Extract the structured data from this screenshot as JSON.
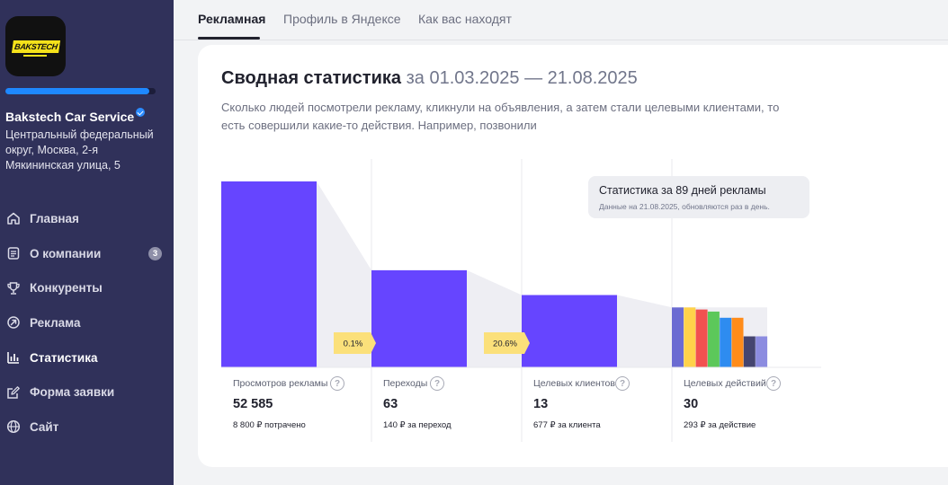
{
  "sidebar": {
    "logo_text": "BAKSTECH",
    "progress": 0.96,
    "company_name": "Bakstech Car Service",
    "address": "Центральный федеральный округ, Москва, 2-я Мякининская улица, 5",
    "nav": [
      {
        "label": "Главная",
        "icon": "home-icon"
      },
      {
        "label": "О компании",
        "icon": "document-icon",
        "badge": "3"
      },
      {
        "label": "Конкуренты",
        "icon": "trophy-icon"
      },
      {
        "label": "Реклама",
        "icon": "arrow-circle-icon"
      },
      {
        "label": "Статистика",
        "icon": "bar-chart-icon",
        "active": true
      },
      {
        "label": "Форма заявки",
        "icon": "edit-icon"
      },
      {
        "label": "Сайт",
        "icon": "globe-icon"
      }
    ]
  },
  "tabs": [
    {
      "label": "Рекламная",
      "active": true
    },
    {
      "label": "Профиль в Яндексе"
    },
    {
      "label": "Как вас находят"
    }
  ],
  "summary": {
    "title": "Сводная статистика",
    "date_range": "за 01.03.2025 — 21.08.2025",
    "description": "Сколько людей посмотрели рекламу, кликнули на объявления, а затем стали целевыми клиентами, то есть совершили какие-то действия. Например, позвонили"
  },
  "tooltip": {
    "title": "Статистика за 89 дней рекламы",
    "subtitle": "Данные на 21.08.2025, обновляются раз в день."
  },
  "metrics": [
    {
      "label": "Просмотров рекламы",
      "value": "52 585",
      "sub": "8 800 ₽ потрачено"
    },
    {
      "label": "Переходы",
      "value": "63",
      "sub": "140 ₽ за переход"
    },
    {
      "label": "Целевых клиентов",
      "value": "13",
      "sub": "677 ₽ за клиента"
    },
    {
      "label": "Целевых действий",
      "value": "30",
      "sub": "293 ₽ за действие"
    }
  ],
  "conversions": [
    "0.1%",
    "20.6%"
  ],
  "colors": {
    "sidebar_bg": "#30315a",
    "accent": "#1e88ff",
    "bar": "#6645ff",
    "funnel_shade": "#eeeef3",
    "conversion_badge": "#fbe07a"
  },
  "chart_data": {
    "type": "bar",
    "categories": [
      "Просмотров рекламы",
      "Переходы",
      "Целевых клиентов",
      "Целевых действий"
    ],
    "values": [
      52585,
      63,
      13,
      30
    ],
    "bar_fill_fraction": [
      0.9,
      0.47,
      0.35,
      0.29
    ],
    "conversion_labels": [
      "0.1%",
      "20.6%"
    ],
    "action_breakdown_colors": [
      "#6b6bd2",
      "#ffd24a",
      "#f25050",
      "#5cc85a",
      "#2e8cf0",
      "#ff8c1a",
      "#454570",
      "#8c8ce0"
    ],
    "action_breakdown_fraction": [
      0.29,
      0.29,
      0.28,
      0.27,
      0.24,
      0.24,
      0.15,
      0.15
    ]
  }
}
